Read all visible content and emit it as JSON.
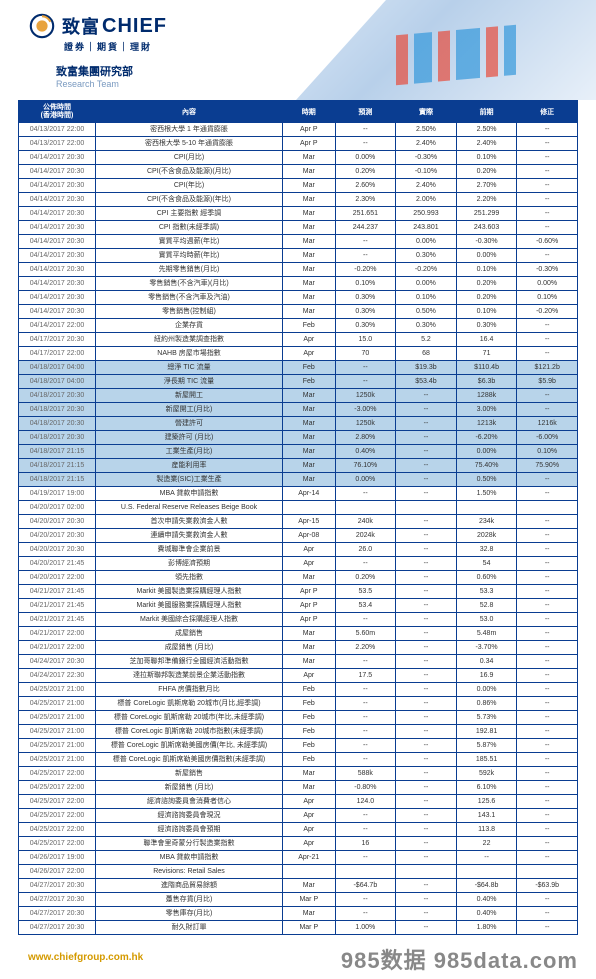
{
  "header": {
    "logo_cn": "致富",
    "logo_en": "CHIEF",
    "logo_sub": "證券｜期貨｜理財",
    "team_cn": "致富集團研究部",
    "team_en": "Research Team"
  },
  "table": {
    "headers": {
      "time": "公佈時間\n(香港時間)",
      "content": "內容",
      "period": "時期",
      "forecast": "預測",
      "actual": "實際",
      "previous": "前期",
      "revised": "修正"
    },
    "rows": [
      {
        "d": "04/13/2017 22:00",
        "c": "密西根大學 1 年通貨膨脹",
        "p": "Apr P",
        "f": "--",
        "a": "2.50%",
        "pr": "2.50%",
        "r": "--"
      },
      {
        "d": "04/13/2017 22:00",
        "c": "密西根大學 5-10 年通貨膨脹",
        "p": "Apr P",
        "f": "--",
        "a": "2.40%",
        "pr": "2.40%",
        "r": "--"
      },
      {
        "d": "04/14/2017 20:30",
        "c": "CPI(月比)",
        "p": "Mar",
        "f": "0.00%",
        "a": "-0.30%",
        "pr": "0.10%",
        "r": "--"
      },
      {
        "d": "04/14/2017 20:30",
        "c": "CPI(不含食品及能源)(月比)",
        "p": "Mar",
        "f": "0.20%",
        "a": "-0.10%",
        "pr": "0.20%",
        "r": "--"
      },
      {
        "d": "04/14/2017 20:30",
        "c": "CPI(年比)",
        "p": "Mar",
        "f": "2.60%",
        "a": "2.40%",
        "pr": "2.70%",
        "r": "--"
      },
      {
        "d": "04/14/2017 20:30",
        "c": "CPI(不含食品及能源)(年比)",
        "p": "Mar",
        "f": "2.30%",
        "a": "2.00%",
        "pr": "2.20%",
        "r": "--"
      },
      {
        "d": "04/14/2017 20:30",
        "c": "CPI 主要指數 經季調",
        "p": "Mar",
        "f": "251.651",
        "a": "250.993",
        "pr": "251.299",
        "r": "--"
      },
      {
        "d": "04/14/2017 20:30",
        "c": "CPI 指數(未經季調)",
        "p": "Mar",
        "f": "244.237",
        "a": "243.801",
        "pr": "243.603",
        "r": "--"
      },
      {
        "d": "04/14/2017 20:30",
        "c": "實質平均週薪(年比)",
        "p": "Mar",
        "f": "--",
        "a": "0.00%",
        "pr": "-0.30%",
        "r": "-0.60%"
      },
      {
        "d": "04/14/2017 20:30",
        "c": "實質平均時薪(年比)",
        "p": "Mar",
        "f": "--",
        "a": "0.30%",
        "pr": "0.00%",
        "r": "--"
      },
      {
        "d": "04/14/2017 20:30",
        "c": "先期零售銷售(月比)",
        "p": "Mar",
        "f": "-0.20%",
        "a": "-0.20%",
        "pr": "0.10%",
        "r": "-0.30%"
      },
      {
        "d": "04/14/2017 20:30",
        "c": "零售銷售(不含汽車)(月比)",
        "p": "Mar",
        "f": "0.10%",
        "a": "0.00%",
        "pr": "0.20%",
        "r": "0.00%"
      },
      {
        "d": "04/14/2017 20:30",
        "c": "零售銷售(不含汽車及汽油)",
        "p": "Mar",
        "f": "0.30%",
        "a": "0.10%",
        "pr": "0.20%",
        "r": "0.10%"
      },
      {
        "d": "04/14/2017 20:30",
        "c": "零售銷售(控制組)",
        "p": "Mar",
        "f": "0.30%",
        "a": "0.50%",
        "pr": "0.10%",
        "r": "-0.20%"
      },
      {
        "d": "04/14/2017 22:00",
        "c": "企業存貨",
        "p": "Feb",
        "f": "0.30%",
        "a": "0.30%",
        "pr": "0.30%",
        "r": "--"
      },
      {
        "d": "04/17/2017 20:30",
        "c": "紐約州製造業調查指數",
        "p": "Apr",
        "f": "15.0",
        "a": "5.2",
        "pr": "16.4",
        "r": "--"
      },
      {
        "d": "04/17/2017 22:00",
        "c": "NAHB 房屋市場指數",
        "p": "Apr",
        "f": "70",
        "a": "68",
        "pr": "71",
        "r": "--"
      },
      {
        "d": "04/18/2017 04:00",
        "c": "總淨 TIC 流量",
        "p": "Feb",
        "f": "--",
        "a": "$19.3b",
        "pr": "$110.4b",
        "r": "$121.2b",
        "hl": true
      },
      {
        "d": "04/18/2017 04:00",
        "c": "淨長期 TIC 流量",
        "p": "Feb",
        "f": "--",
        "a": "$53.4b",
        "pr": "$6.3b",
        "r": "$5.9b",
        "hl": true
      },
      {
        "d": "04/18/2017 20:30",
        "c": "新屋開工",
        "p": "Mar",
        "f": "1250k",
        "a": "--",
        "pr": "1288k",
        "r": "--",
        "hl": true
      },
      {
        "d": "04/18/2017 20:30",
        "c": "新屋開工(月比)",
        "p": "Mar",
        "f": "-3.00%",
        "a": "--",
        "pr": "3.00%",
        "r": "--",
        "hl": true
      },
      {
        "d": "04/18/2017 20:30",
        "c": "營建許可",
        "p": "Mar",
        "f": "1250k",
        "a": "--",
        "pr": "1213k",
        "r": "1216k",
        "hl": true
      },
      {
        "d": "04/18/2017 20:30",
        "c": "建築許可 (月比)",
        "p": "Mar",
        "f": "2.80%",
        "a": "--",
        "pr": "-6.20%",
        "r": "-6.00%",
        "hl": true
      },
      {
        "d": "04/18/2017 21:15",
        "c": "工業生產(月比)",
        "p": "Mar",
        "f": "0.40%",
        "a": "--",
        "pr": "0.00%",
        "r": "0.10%",
        "hl": true
      },
      {
        "d": "04/18/2017 21:15",
        "c": "産能利用率",
        "p": "Mar",
        "f": "76.10%",
        "a": "--",
        "pr": "75.40%",
        "r": "75.90%",
        "hl": true
      },
      {
        "d": "04/18/2017 21:15",
        "c": "製造業(SIC)工業生產",
        "p": "Mar",
        "f": "0.00%",
        "a": "--",
        "pr": "0.50%",
        "r": "--",
        "hl": true
      },
      {
        "d": "04/19/2017 19:00",
        "c": "MBA 貸款申請指數",
        "p": "Apr-14",
        "f": "--",
        "a": "--",
        "pr": "1.50%",
        "r": "--"
      },
      {
        "d": "04/20/2017 02:00",
        "c": "U.S. Federal Reserve Releases Beige Book",
        "p": "",
        "f": "",
        "a": "",
        "pr": "",
        "r": ""
      },
      {
        "d": "04/20/2017 20:30",
        "c": "首次申請失業救濟金人數",
        "p": "Apr-15",
        "f": "240k",
        "a": "--",
        "pr": "234k",
        "r": "--"
      },
      {
        "d": "04/20/2017 20:30",
        "c": "連續申請失業救濟金人數",
        "p": "Apr-08",
        "f": "2024k",
        "a": "--",
        "pr": "2028k",
        "r": "--"
      },
      {
        "d": "04/20/2017 20:30",
        "c": "費城聯準會企業前景",
        "p": "Apr",
        "f": "26.0",
        "a": "--",
        "pr": "32.8",
        "r": "--"
      },
      {
        "d": "04/20/2017 21:45",
        "c": "彭博經濟預期",
        "p": "Apr",
        "f": "--",
        "a": "--",
        "pr": "54",
        "r": "--"
      },
      {
        "d": "04/20/2017 22:00",
        "c": "領先指數",
        "p": "Mar",
        "f": "0.20%",
        "a": "--",
        "pr": "0.60%",
        "r": "--"
      },
      {
        "d": "04/21/2017 21:45",
        "c": "Markit 美國製造業採購經理人指數",
        "p": "Apr P",
        "f": "53.5",
        "a": "--",
        "pr": "53.3",
        "r": "--"
      },
      {
        "d": "04/21/2017 21:45",
        "c": "Markit 美國服務業採購經理人指數",
        "p": "Apr P",
        "f": "53.4",
        "a": "--",
        "pr": "52.8",
        "r": "--"
      },
      {
        "d": "04/21/2017 21:45",
        "c": "Markit 美國綜合採購經理人指數",
        "p": "Apr P",
        "f": "--",
        "a": "--",
        "pr": "53.0",
        "r": "--"
      },
      {
        "d": "04/21/2017 22:00",
        "c": "成屋銷售",
        "p": "Mar",
        "f": "5.60m",
        "a": "--",
        "pr": "5.48m",
        "r": "--"
      },
      {
        "d": "04/21/2017 22:00",
        "c": "成屋銷售 (月比)",
        "p": "Mar",
        "f": "2.20%",
        "a": "--",
        "pr": "-3.70%",
        "r": "--"
      },
      {
        "d": "04/24/2017 20:30",
        "c": "芝加哥聯邦準備銀行全國經濟活動指數",
        "p": "Mar",
        "f": "--",
        "a": "--",
        "pr": "0.34",
        "r": "--"
      },
      {
        "d": "04/24/2017 22:30",
        "c": "達拉斯聯邦製造業前景企業活動指數",
        "p": "Apr",
        "f": "17.5",
        "a": "--",
        "pr": "16.9",
        "r": "--"
      },
      {
        "d": "04/25/2017 21:00",
        "c": "FHFA 房價指數月比",
        "p": "Feb",
        "f": "--",
        "a": "--",
        "pr": "0.00%",
        "r": "--"
      },
      {
        "d": "04/25/2017 21:00",
        "c": "標普 CoreLogic 凱斯席勒 20城市(月比,經季調)",
        "p": "Feb",
        "f": "--",
        "a": "--",
        "pr": "0.86%",
        "r": "--"
      },
      {
        "d": "04/25/2017 21:00",
        "c": "標普 CoreLogic 凱斯席勒 20城市(年比,未經季調)",
        "p": "Feb",
        "f": "--",
        "a": "--",
        "pr": "5.73%",
        "r": "--"
      },
      {
        "d": "04/25/2017 21:00",
        "c": "標普 CoreLogic 凱斯席勒 20城市指數(未經季調)",
        "p": "Feb",
        "f": "--",
        "a": "--",
        "pr": "192.81",
        "r": "--"
      },
      {
        "d": "04/25/2017 21:00",
        "c": "標普 CoreLogic 凱斯席勒美國房價(年比, 未經季調)",
        "p": "Feb",
        "f": "--",
        "a": "--",
        "pr": "5.87%",
        "r": "--"
      },
      {
        "d": "04/25/2017 21:00",
        "c": "標普 CoreLogic 凱斯席勒美國房價指數(未經季調)",
        "p": "Feb",
        "f": "--",
        "a": "--",
        "pr": "185.51",
        "r": "--"
      },
      {
        "d": "04/25/2017 22:00",
        "c": "新屋銷售",
        "p": "Mar",
        "f": "588k",
        "a": "--",
        "pr": "592k",
        "r": "--"
      },
      {
        "d": "04/25/2017 22:00",
        "c": "新屋銷售 (月比)",
        "p": "Mar",
        "f": "-0.80%",
        "a": "--",
        "pr": "6.10%",
        "r": "--"
      },
      {
        "d": "04/25/2017 22:00",
        "c": "經濟諮詢委員會消費者信心",
        "p": "Apr",
        "f": "124.0",
        "a": "--",
        "pr": "125.6",
        "r": "--"
      },
      {
        "d": "04/25/2017 22:00",
        "c": "經濟諮詢委員會現況",
        "p": "Apr",
        "f": "--",
        "a": "--",
        "pr": "143.1",
        "r": "--"
      },
      {
        "d": "04/25/2017 22:00",
        "c": "經濟諮詢委員會預期",
        "p": "Apr",
        "f": "--",
        "a": "--",
        "pr": "113.8",
        "r": "--"
      },
      {
        "d": "04/25/2017 22:00",
        "c": "聯準會里奇蒙分行製造業指數",
        "p": "Apr",
        "f": "16",
        "a": "--",
        "pr": "22",
        "r": "--"
      },
      {
        "d": "04/26/2017 19:00",
        "c": "MBA 貸款申請指數",
        "p": "Apr-21",
        "f": "--",
        "a": "--",
        "pr": "--",
        "r": "--"
      },
      {
        "d": "04/26/2017 22:00",
        "c": "Revisions: Retail Sales",
        "p": "",
        "f": "",
        "a": "",
        "pr": "",
        "r": ""
      },
      {
        "d": "04/27/2017 20:30",
        "c": "進階商品貿易餘額",
        "p": "Mar",
        "f": "-$64.7b",
        "a": "--",
        "pr": "-$64.8b",
        "r": "-$63.9b"
      },
      {
        "d": "04/27/2017 20:30",
        "c": "躉售存貨(月比)",
        "p": "Mar P",
        "f": "--",
        "a": "--",
        "pr": "0.40%",
        "r": "--"
      },
      {
        "d": "04/27/2017 20:30",
        "c": "零售庫存(月比)",
        "p": "Mar",
        "f": "--",
        "a": "--",
        "pr": "0.40%",
        "r": "--"
      },
      {
        "d": "04/27/2017 20:30",
        "c": "耐久財訂單",
        "p": "Mar P",
        "f": "1.00%",
        "a": "--",
        "pr": "1.80%",
        "r": "--"
      }
    ]
  },
  "footer": {
    "url": "www.chiefgroup.com.hk",
    "watermark": "985数据  985data.com"
  },
  "colors": {
    "header_bg": "#0a3d91",
    "highlight_bg": "#b8d4ea",
    "border": "#0a3d91"
  }
}
